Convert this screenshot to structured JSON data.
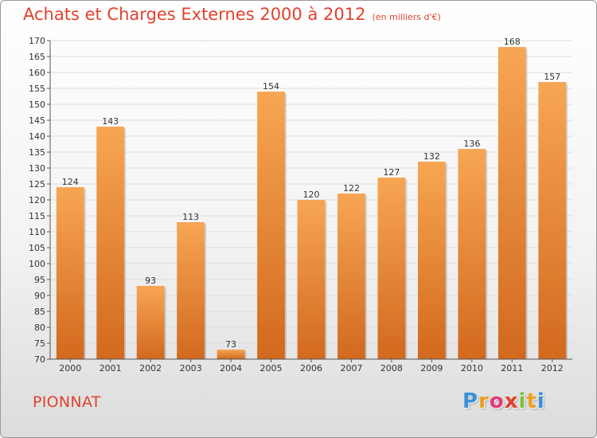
{
  "header": {
    "title": "Achats et Charges Externes 2000 à 2012",
    "subtitle": "(en milliers d'€)"
  },
  "footer": {
    "commune": "PIONNAT",
    "brand_letters": [
      "P",
      "r",
      "o",
      "x",
      "i",
      "t",
      "i"
    ],
    "brand_colors": [
      "#3a8fd9",
      "#e8a020",
      "#e23b7a",
      "#e2412d",
      "#7bbf3a",
      "#e8a020",
      "#3a8fd9"
    ]
  },
  "chart_data": {
    "type": "bar",
    "categories": [
      "2000",
      "2001",
      "2002",
      "2003",
      "2004",
      "2005",
      "2006",
      "2007",
      "2008",
      "2009",
      "2010",
      "2011",
      "2012"
    ],
    "values": [
      124,
      143,
      93,
      113,
      73,
      154,
      120,
      122,
      127,
      132,
      136,
      168,
      157
    ],
    "ylim": [
      70,
      170
    ],
    "yticks": [
      70,
      75,
      80,
      85,
      90,
      95,
      100,
      105,
      110,
      115,
      120,
      125,
      130,
      135,
      140,
      145,
      150,
      155,
      160,
      165,
      170
    ],
    "grid": true,
    "bar_color_top": "#f7a654",
    "bar_color_bottom": "#d2691e"
  }
}
